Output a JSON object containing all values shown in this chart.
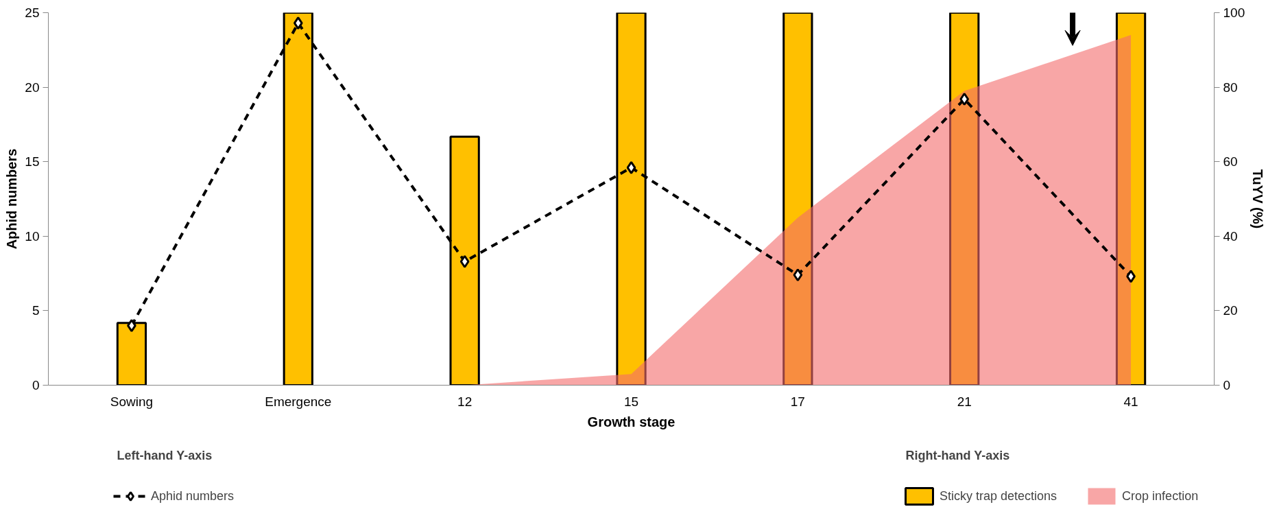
{
  "chart_data": {
    "type": "bar",
    "xlabel": "Growth stage",
    "ylabel": "Aphid numbers",
    "y2label": "TuYV (%)",
    "categories": [
      "Sowing",
      "Emergence",
      "12",
      "15",
      "17",
      "21",
      "41"
    ],
    "series": [
      {
        "name": "Sticky trap detections",
        "axis": "y2",
        "color": "#ffc000",
        "values": [
          16.7,
          100,
          66.7,
          100,
          100,
          100,
          100
        ]
      },
      {
        "name": "Crop infection",
        "type": "area",
        "axis": "y2",
        "color": "#f36b6b",
        "values": [
          null,
          null,
          0,
          3,
          45,
          79,
          94
        ]
      },
      {
        "name": "Aphid numbers",
        "type": "line",
        "color": "#000000",
        "marker": "diamond",
        "line_style": "dashed",
        "values": [
          4.0,
          24.3,
          8.3,
          14.6,
          7.4,
          19.2,
          7.3
        ]
      }
    ],
    "ylim": [
      0,
      25
    ],
    "yticks": [
      0,
      5,
      10,
      15,
      20,
      25
    ],
    "y2lim": [
      0,
      100
    ],
    "y2ticks": [
      0,
      20,
      40,
      60,
      80,
      100
    ],
    "grid": false,
    "legend": "bottom",
    "annotations": [
      "Left-hand Y-axis",
      "Right-hand Y-axis"
    ]
  }
}
